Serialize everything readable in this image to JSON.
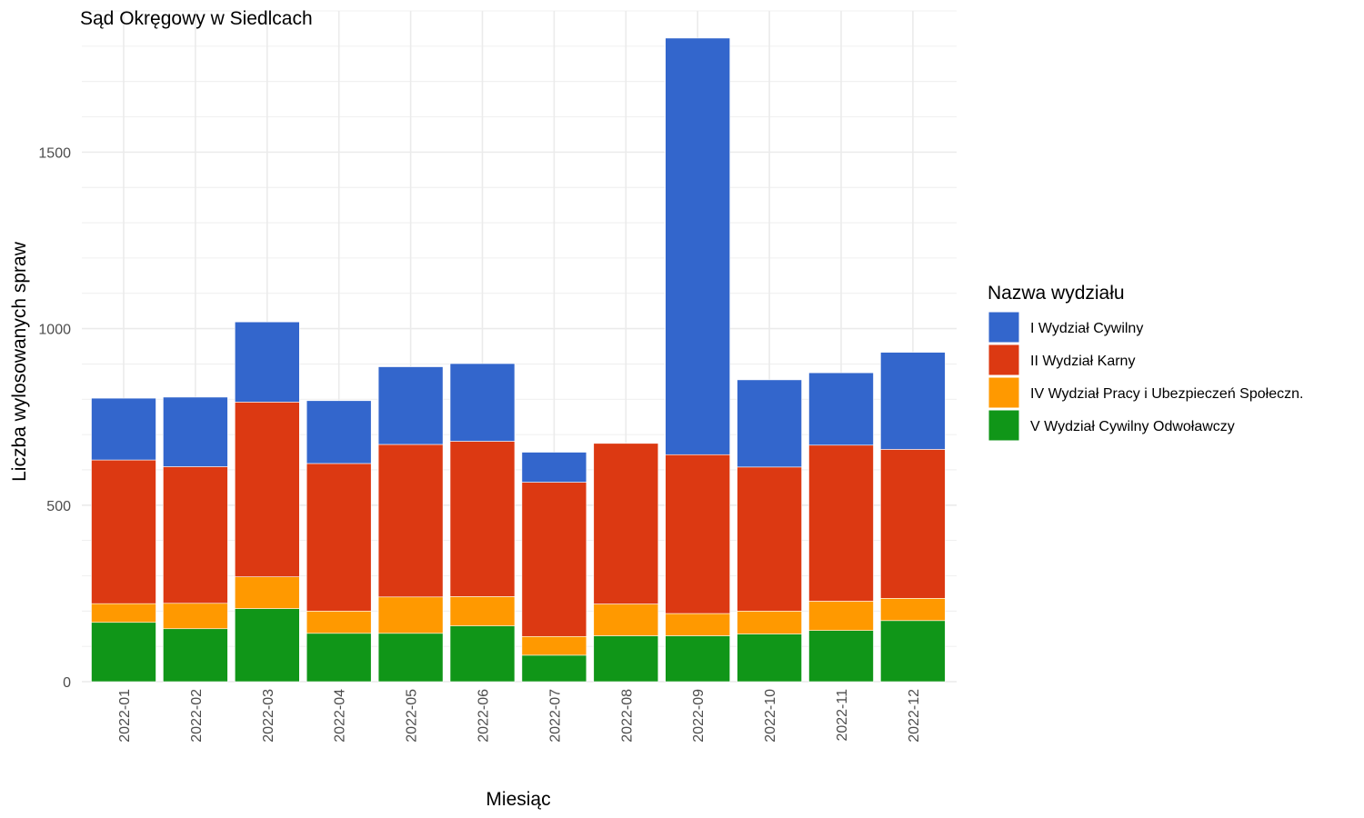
{
  "chart_data": {
    "type": "bar",
    "stacked": true,
    "title": "Sąd Okręgowy w Siedlcach",
    "xlabel": "Miesiąc",
    "ylabel": "Liczba wylosowanych spraw",
    "ylim": [
      0,
      1900
    ],
    "yticks": [
      0,
      500,
      1000,
      1500
    ],
    "grid": true,
    "legend_title": "Nazwa wydziału",
    "legend_position": "right",
    "categories": [
      "2022-01",
      "2022-02",
      "2022-03",
      "2022-04",
      "2022-05",
      "2022-06",
      "2022-07",
      "2022-08",
      "2022-09",
      "2022-10",
      "2022-11",
      "2022-12"
    ],
    "series": [
      {
        "name": "I Wydział Cywilny",
        "color": "#3366CC",
        "values": [
          175,
          197,
          227,
          178,
          220,
          220,
          85,
          0,
          1180,
          247,
          205,
          275
        ]
      },
      {
        "name": "II Wydział Karny",
        "color": "#DC3912",
        "values": [
          407,
          387,
          495,
          418,
          432,
          440,
          437,
          455,
          450,
          408,
          442,
          422
        ]
      },
      {
        "name": "IV Wydział Pracy i Ubezpieczeń Społeczn.",
        "color": "#FF9900",
        "values": [
          53,
          72,
          90,
          63,
          103,
          83,
          53,
          90,
          63,
          65,
          83,
          63
        ]
      },
      {
        "name": "V Wydział Cywilny Odwoławczy",
        "color": "#109618",
        "values": [
          168,
          150,
          207,
          137,
          137,
          158,
          75,
          130,
          130,
          135,
          145,
          173
        ]
      }
    ]
  }
}
